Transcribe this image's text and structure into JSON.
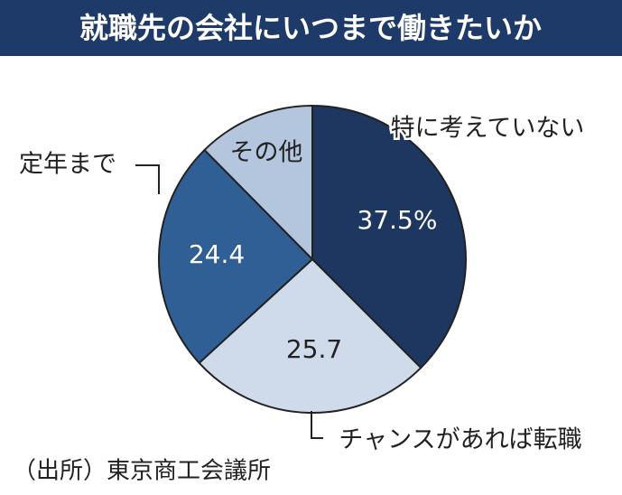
{
  "chart_data": {
    "type": "pie",
    "title": "就職先の会社にいつまで働きたいか",
    "categories": [
      "特に考えていない",
      "チャンスがあれば転職",
      "定年まで",
      "その他"
    ],
    "values": [
      37.5,
      25.7,
      24.4,
      12.4
    ],
    "value_labels": [
      "37.5%",
      "25.7",
      "24.4",
      null
    ],
    "colors": [
      "#1e3760",
      "#cfdbeb",
      "#2f5f95",
      "#b3c6de"
    ],
    "start_angle": 0,
    "direction": "clockwise",
    "source": "（出所）東京商工会議所"
  }
}
